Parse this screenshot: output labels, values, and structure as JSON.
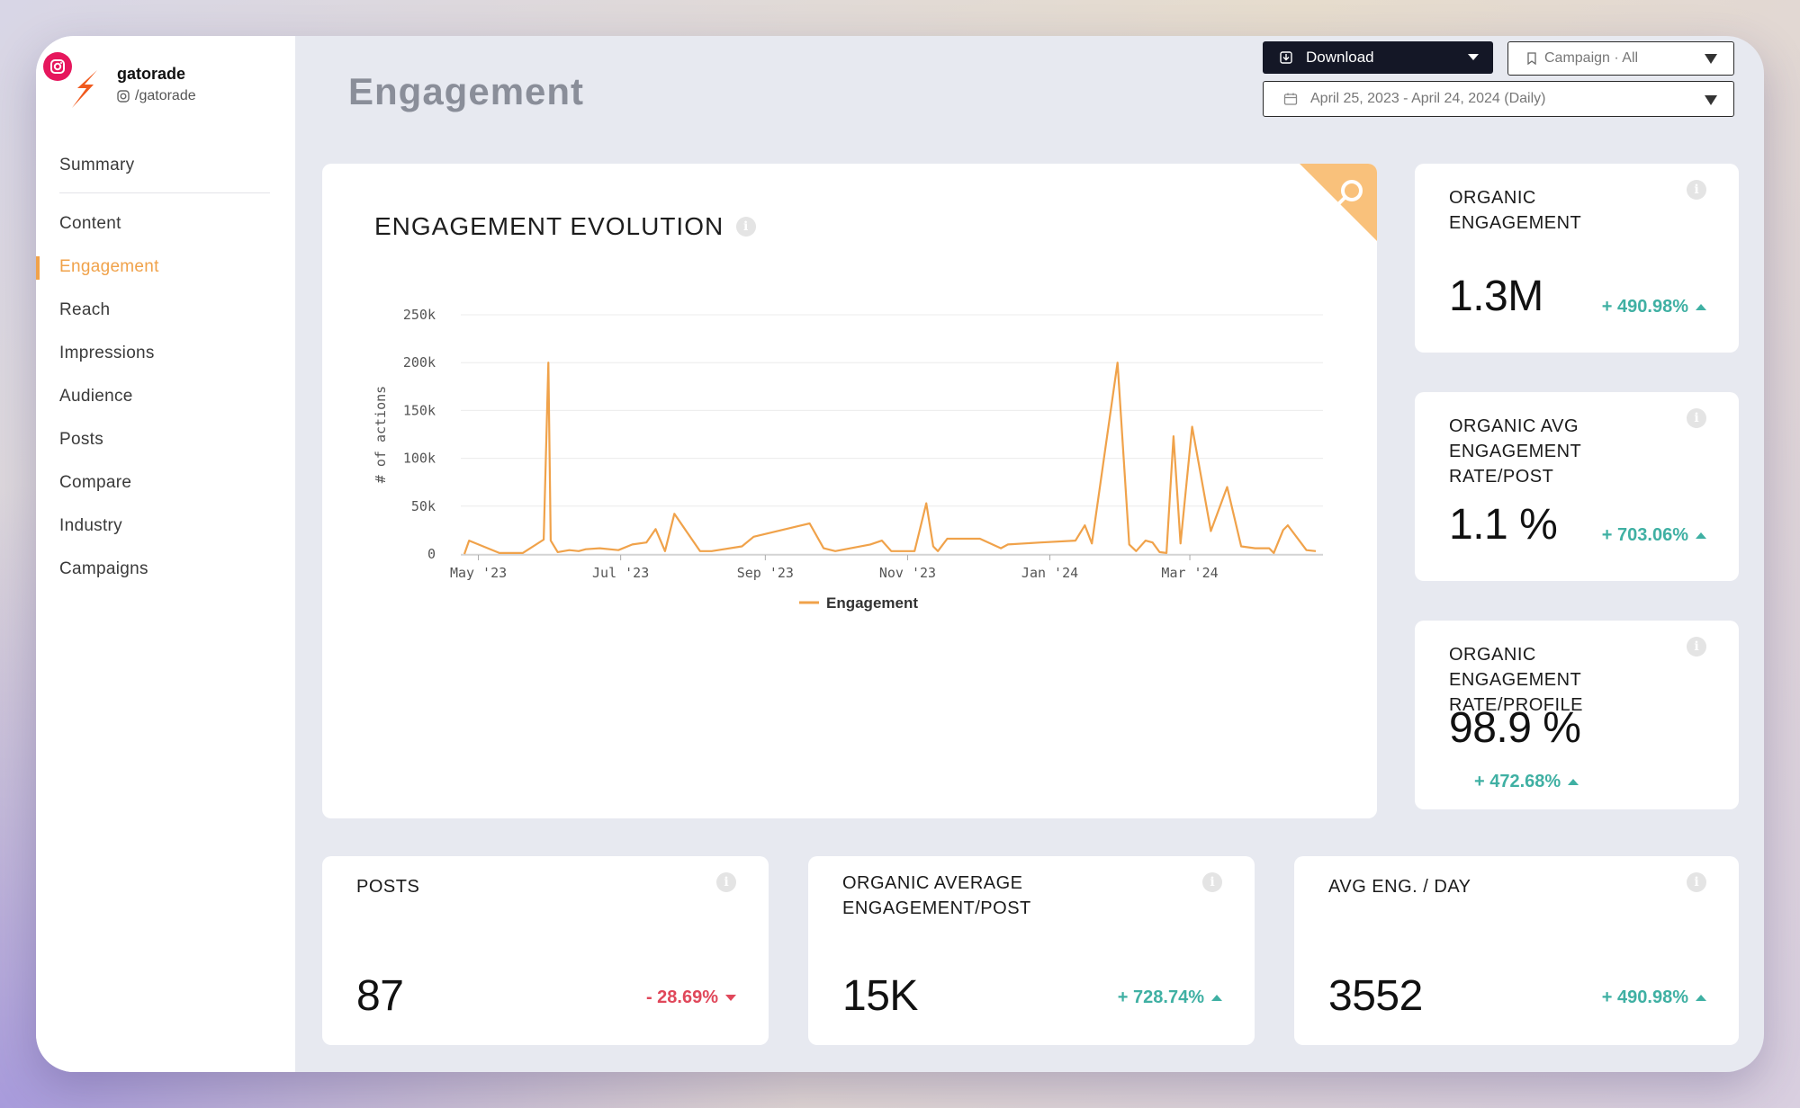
{
  "profile": {
    "name": "gatorade",
    "handle": "/gatorade"
  },
  "nav": {
    "top": "Summary",
    "items": [
      "Content",
      "Engagement",
      "Reach",
      "Impressions",
      "Audience",
      "Posts",
      "Compare",
      "Industry",
      "Campaigns"
    ],
    "active": "Engagement"
  },
  "header": {
    "title": "Engagement",
    "download_label": "Download",
    "campaign_label": "Campaign · All",
    "date_range": "April 25, 2023 - April 24, 2024 (Daily)"
  },
  "colors": {
    "accent": "#f0a24a",
    "positive": "#3fb0a3",
    "negative": "#e0475a",
    "dark": "#141726"
  },
  "chart_data": {
    "type": "line",
    "title": "ENGAGEMENT EVOLUTION",
    "ylabel": "# of actions",
    "xlabel": "",
    "ylim": [
      0,
      250000
    ],
    "yticks": [
      0,
      50000,
      100000,
      150000,
      200000,
      250000
    ],
    "ytick_labels": [
      "0",
      "50k",
      "100k",
      "150k",
      "200k",
      "250k"
    ],
    "xlim": [
      "2023-04-25",
      "2024-04-24"
    ],
    "xtick_dates": [
      "2023-05-01",
      "2023-07-01",
      "2023-09-01",
      "2023-11-01",
      "2024-01-01",
      "2024-03-01"
    ],
    "xtick_labels": [
      "May '23",
      "Jul '23",
      "Sep '23",
      "Nov '23",
      "Jan '24",
      "Mar '24"
    ],
    "legend": "bottom",
    "grid": true,
    "series": [
      {
        "name": "Engagement",
        "color": "#f0a24a",
        "x": [
          "2023-04-25",
          "2023-04-27",
          "2023-05-10",
          "2023-05-20",
          "2023-05-29",
          "2023-05-31",
          "2023-06-01",
          "2023-06-04",
          "2023-06-09",
          "2023-06-13",
          "2023-06-16",
          "2023-06-22",
          "2023-06-30",
          "2023-07-06",
          "2023-07-12",
          "2023-07-16",
          "2023-07-20",
          "2023-07-24",
          "2023-08-04",
          "2023-08-09",
          "2023-08-22",
          "2023-08-27",
          "2023-09-20",
          "2023-09-26",
          "2023-10-01",
          "2023-10-16",
          "2023-10-21",
          "2023-10-25",
          "2023-10-28",
          "2023-11-01",
          "2023-11-04",
          "2023-11-09",
          "2023-11-12",
          "2023-11-14",
          "2023-11-18",
          "2023-12-02",
          "2023-12-11",
          "2023-12-14",
          "2023-12-28",
          "2024-01-12",
          "2024-01-16",
          "2024-01-19",
          "2024-01-30",
          "2024-02-04",
          "2024-02-07",
          "2024-02-11",
          "2024-02-14",
          "2024-02-17",
          "2024-02-20",
          "2024-02-23",
          "2024-02-26",
          "2024-03-02",
          "2024-03-10",
          "2024-03-17",
          "2024-03-23",
          "2024-03-29",
          "2024-04-01",
          "2024-04-04",
          "2024-04-06",
          "2024-04-10",
          "2024-04-12",
          "2024-04-20",
          "2024-04-24"
        ],
        "y": [
          0,
          14000,
          1000,
          1000,
          15000,
          200000,
          14000,
          2000,
          4000,
          3000,
          5000,
          6000,
          4000,
          10000,
          12000,
          26000,
          3000,
          42000,
          3000,
          3000,
          8000,
          18000,
          32000,
          6000,
          3000,
          10000,
          14000,
          3000,
          3000,
          3000,
          3000,
          53000,
          8000,
          3000,
          16000,
          16000,
          6000,
          10000,
          12000,
          14000,
          30000,
          11000,
          200000,
          10000,
          3000,
          14000,
          12000,
          2000,
          1000,
          123000,
          11000,
          133000,
          24000,
          70000,
          8000,
          6000,
          6000,
          6000,
          1000,
          25000,
          30000,
          4000,
          3000
        ]
      }
    ]
  },
  "metrics": {
    "organic_engagement": {
      "label": "ORGANIC ENGAGEMENT",
      "value": "1.3M",
      "change": "+ 490.98%"
    },
    "organic_avg_rate_post": {
      "label": "ORGANIC AVG ENGAGEMENT RATE/POST",
      "value": "1.1 %",
      "change": "+ 703.06%"
    },
    "organic_rate_profile": {
      "label": "ORGANIC ENGAGEMENT RATE/PROFILE",
      "value": "98.9 %",
      "change": "+ 472.68%"
    },
    "posts": {
      "label": "POSTS",
      "value": "87",
      "change": "- 28.69%"
    },
    "organic_avg_eng_post": {
      "label": "ORGANIC AVERAGE ENGAGEMENT/POST",
      "value": "15K",
      "change": "+ 728.74%"
    },
    "avg_eng_day": {
      "label": "AVG ENG. / DAY",
      "value": "3552",
      "change": "+ 490.98%"
    }
  }
}
